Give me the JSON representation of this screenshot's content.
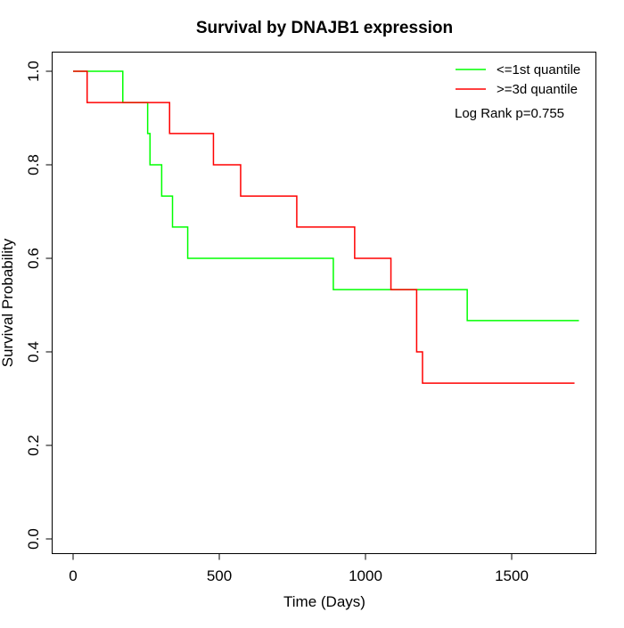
{
  "chart_data": {
    "type": "line",
    "step": true,
    "title": "Survival by DNAJB1 expression",
    "xlabel": "Time (Days)",
    "ylabel": "Survival Probability",
    "xlim": [
      0,
      1780
    ],
    "ylim": [
      0,
      1.0
    ],
    "x_ticks": [
      0,
      500,
      1000,
      1500
    ],
    "y_ticks": [
      0.0,
      0.2,
      0.4,
      0.6,
      0.8,
      1.0
    ],
    "x_tick_labels": [
      "0",
      "500",
      "1000",
      "1500"
    ],
    "y_tick_labels": [
      "0.0",
      "0.2",
      "0.4",
      "0.6",
      "0.8",
      "1.0"
    ],
    "grid": false,
    "legend_position": "top-right",
    "annotation": "Log Rank p=0.755",
    "series": [
      {
        "name": "<=1st quantile",
        "color": "#00ff00",
        "points": [
          [
            0,
            1.0
          ],
          [
            170,
            1.0
          ],
          [
            170,
            0.933
          ],
          [
            255,
            0.933
          ],
          [
            255,
            0.867
          ],
          [
            263,
            0.867
          ],
          [
            263,
            0.8
          ],
          [
            303,
            0.8
          ],
          [
            303,
            0.733
          ],
          [
            340,
            0.733
          ],
          [
            340,
            0.667
          ],
          [
            392,
            0.667
          ],
          [
            392,
            0.6
          ],
          [
            890,
            0.6
          ],
          [
            890,
            0.533
          ],
          [
            1348,
            0.533
          ],
          [
            1348,
            0.467
          ],
          [
            1730,
            0.467
          ]
        ]
      },
      {
        "name": ">=3d quantile",
        "color": "#ff0000",
        "points": [
          [
            0,
            1.0
          ],
          [
            48,
            1.0
          ],
          [
            48,
            0.933
          ],
          [
            330,
            0.933
          ],
          [
            330,
            0.867
          ],
          [
            480,
            0.867
          ],
          [
            480,
            0.8
          ],
          [
            573,
            0.8
          ],
          [
            573,
            0.733
          ],
          [
            765,
            0.733
          ],
          [
            765,
            0.667
          ],
          [
            963,
            0.667
          ],
          [
            963,
            0.6
          ],
          [
            1087,
            0.6
          ],
          [
            1087,
            0.533
          ],
          [
            1175,
            0.533
          ],
          [
            1175,
            0.4
          ],
          [
            1195,
            0.4
          ],
          [
            1195,
            0.333
          ],
          [
            1715,
            0.333
          ]
        ]
      }
    ]
  }
}
